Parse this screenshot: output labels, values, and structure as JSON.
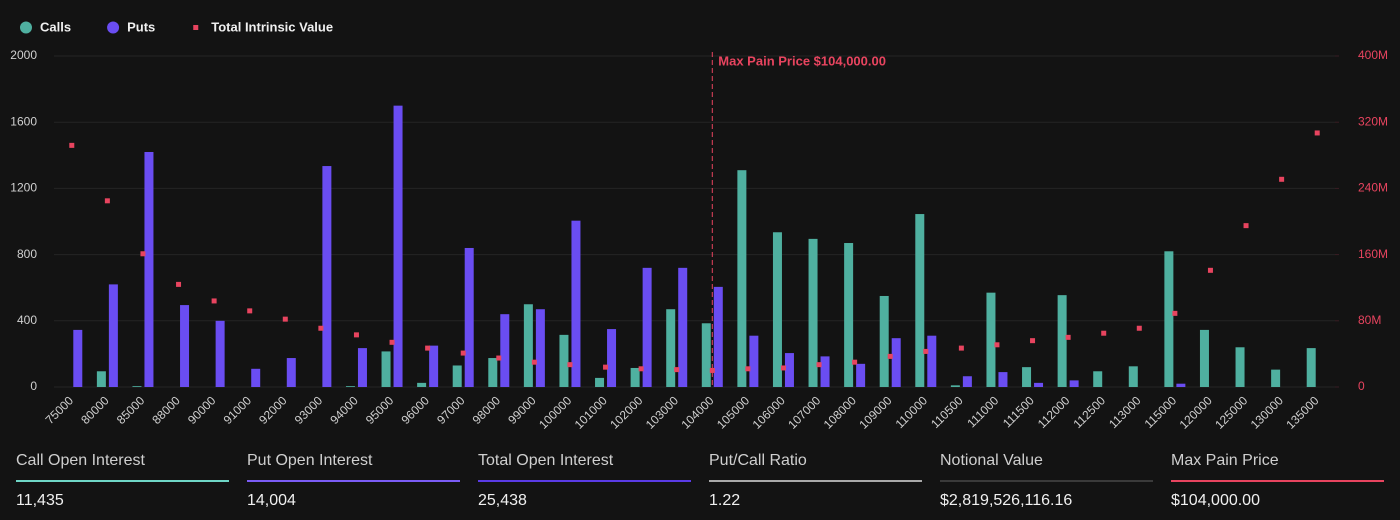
{
  "chart_data": {
    "type": "bar",
    "categories": [
      "75000",
      "80000",
      "85000",
      "88000",
      "90000",
      "91000",
      "92000",
      "93000",
      "94000",
      "95000",
      "96000",
      "97000",
      "98000",
      "99000",
      "100000",
      "101000",
      "102000",
      "103000",
      "104000",
      "105000",
      "106000",
      "107000",
      "108000",
      "109000",
      "110000",
      "110500",
      "111000",
      "111500",
      "112000",
      "112500",
      "113000",
      "115000",
      "120000",
      "125000",
      "130000",
      "135000"
    ],
    "series": [
      {
        "name": "Calls",
        "color": "#4fb0a0",
        "type": "bar",
        "values": [
          0,
          95,
          5,
          0,
          0,
          0,
          0,
          0,
          5,
          215,
          25,
          130,
          175,
          500,
          315,
          55,
          115,
          470,
          385,
          1310,
          935,
          895,
          870,
          550,
          1045,
          10,
          570,
          120,
          555,
          95,
          125,
          820,
          345,
          240,
          105,
          235
        ]
      },
      {
        "name": "Puts",
        "color": "#6a4df2",
        "type": "bar",
        "values": [
          345,
          620,
          1420,
          495,
          400,
          110,
          175,
          1335,
          235,
          1700,
          250,
          840,
          440,
          470,
          1005,
          350,
          720,
          720,
          605,
          310,
          205,
          185,
          140,
          295,
          310,
          65,
          90,
          25,
          40,
          0,
          0,
          20,
          0,
          0,
          0,
          0
        ]
      },
      {
        "name": "Total Intrinsic Value",
        "color": "#e8445f",
        "type": "scatter",
        "axis": "y2",
        "values": [
          292000000,
          225000000,
          161000000,
          124000000,
          104000000,
          92000000,
          82000000,
          71000000,
          63000000,
          54000000,
          47000000,
          41000000,
          35000000,
          30000000,
          27000000,
          24000000,
          22000000,
          21000000,
          20000000,
          22000000,
          23000000,
          27000000,
          30000000,
          37000000,
          43000000,
          47000000,
          51000000,
          56000000,
          60000000,
          65000000,
          71000000,
          89000000,
          141000000,
          195000000,
          251000000,
          307000000
        ]
      }
    ],
    "ylim": [
      0,
      2000
    ],
    "yticks": [
      0,
      400,
      800,
      1200,
      1600,
      2000
    ],
    "y2lim": [
      0,
      400000000
    ],
    "y2ticks": [
      {
        "value": 0,
        "label": "0"
      },
      {
        "value": 80000000,
        "label": "80M"
      },
      {
        "value": 160000000,
        "label": "160M"
      },
      {
        "value": 240000000,
        "label": "240M"
      },
      {
        "value": 320000000,
        "label": "320M"
      },
      {
        "value": 400000000,
        "label": "400M"
      }
    ],
    "grid": true,
    "legend": "top-left",
    "annotation": {
      "text": "Max Pain Price $104,000.00",
      "x": "104000",
      "color": "#e8445f"
    }
  },
  "stats": [
    {
      "label": "Call Open Interest",
      "value": "11,435",
      "color": "#6fd6c6"
    },
    {
      "label": "Put Open Interest",
      "value": "14,004",
      "color": "#7b5cf5"
    },
    {
      "label": "Total Open Interest",
      "value": "25,438",
      "color": "#5a3be6"
    },
    {
      "label": "Put/Call Ratio",
      "value": "1.22",
      "color": "#a9a9a9"
    },
    {
      "label": "Notional Value",
      "value": "$2,819,526,116.16",
      "color": "#3a3a3a"
    },
    {
      "label": "Max Pain Price",
      "value": "$104,000.00",
      "color": "#e8445f"
    }
  ]
}
